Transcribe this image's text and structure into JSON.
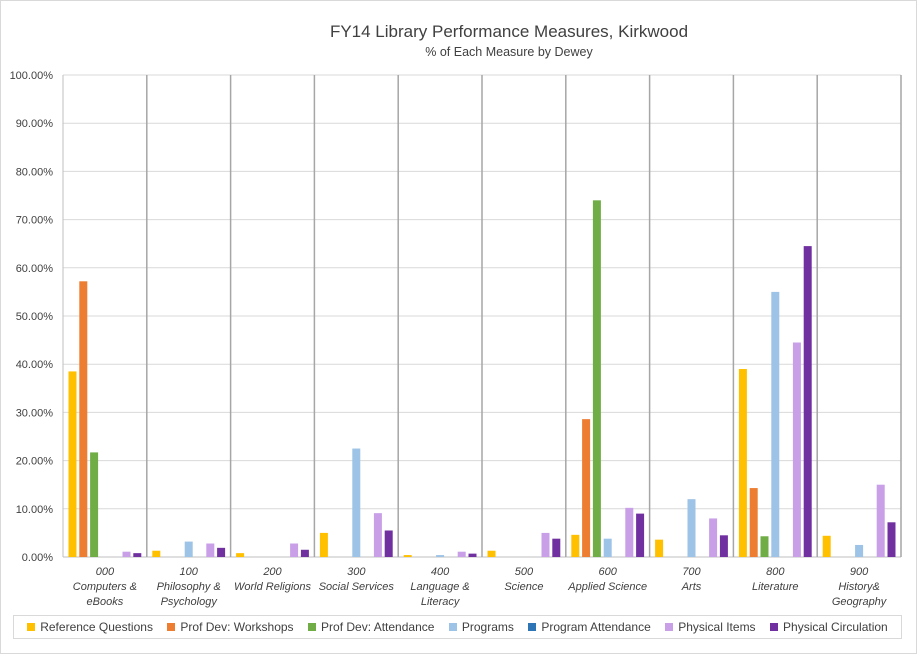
{
  "chart_data": {
    "type": "bar",
    "title": "FY14 Library Performance Measures, Kirkwood",
    "subtitle": "% of Each Measure by Dewey",
    "ylim": [
      0,
      100
    ],
    "yticks": [
      "0.00%",
      "10.00%",
      "20.00%",
      "30.00%",
      "40.00%",
      "50.00%",
      "60.00%",
      "70.00%",
      "80.00%",
      "90.00%",
      "100.00%"
    ],
    "categories": [
      [
        "000",
        "Computers &",
        "eBooks"
      ],
      [
        "100",
        "Philosophy &",
        "Psychology"
      ],
      [
        "200",
        "World Religions"
      ],
      [
        "300",
        "Social Services"
      ],
      [
        "400",
        "Language &",
        "Literacy"
      ],
      [
        "500",
        "Science"
      ],
      [
        "600",
        "Applied Science"
      ],
      [
        "700",
        "Arts"
      ],
      [
        "800",
        "Literature"
      ],
      [
        "900",
        "History&",
        "Geography"
      ]
    ],
    "series": [
      {
        "name": "Reference Questions",
        "color": "#FFC000",
        "values": [
          38.5,
          1.3,
          0.8,
          5.0,
          0.4,
          1.3,
          4.6,
          3.6,
          39.0,
          4.4
        ]
      },
      {
        "name": "Prof Dev: Workshops",
        "color": "#ED7D31",
        "values": [
          57.2,
          0,
          0,
          0,
          0,
          0,
          28.6,
          0,
          14.3,
          0
        ]
      },
      {
        "name": "Prof Dev: Attendance",
        "color": "#70AD47",
        "values": [
          21.7,
          0,
          0,
          0,
          0,
          0,
          74.0,
          0,
          4.3,
          0
        ]
      },
      {
        "name": "Programs",
        "color": "#9DC3E6",
        "values": [
          0,
          3.2,
          0,
          22.5,
          0.4,
          0,
          3.8,
          12.0,
          55.0,
          2.5
        ]
      },
      {
        "name": "Program Attendance",
        "color": "#2E75B6",
        "values": [
          0,
          0,
          0,
          0,
          0,
          0,
          0,
          0,
          0,
          0
        ]
      },
      {
        "name": "Physical Items",
        "color": "#C9A0E8",
        "values": [
          1.1,
          2.8,
          2.8,
          9.1,
          1.1,
          5.0,
          10.2,
          8.0,
          44.5,
          15.0
        ]
      },
      {
        "name": "Physical Circulation",
        "color": "#7030A0",
        "values": [
          0.8,
          1.9,
          1.5,
          5.5,
          0.7,
          3.8,
          9.0,
          4.5,
          64.5,
          7.2
        ]
      }
    ]
  }
}
